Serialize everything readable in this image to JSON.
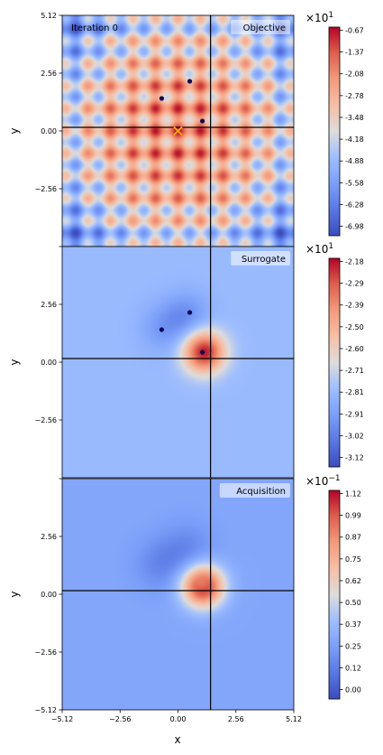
{
  "chart_data": [
    {
      "type": "heatmap",
      "title": "Objective",
      "annotation": "Iteration 0",
      "xlabel": "",
      "ylabel": "y",
      "xlim": [
        -5.12,
        5.12
      ],
      "ylim": [
        -5.12,
        5.12
      ],
      "yticks": [
        "5.12",
        "2.56",
        "0.00",
        "−2.56"
      ],
      "xticks": [],
      "colormap": "coolwarm",
      "colorbar": {
        "scale": "×10",
        "exponent": "1",
        "ticks": [
          "-0.67",
          "-1.37",
          "-2.08",
          "-2.78",
          "-3.48",
          "-4.18",
          "-4.88",
          "-5.58",
          "-6.28",
          "-6.98"
        ]
      },
      "crosshair": {
        "x": 1.44,
        "y": 0.16
      },
      "points": [
        {
          "x": -0.72,
          "y": 1.44
        },
        {
          "x": 0.52,
          "y": 2.2
        },
        {
          "x": 1.08,
          "y": 0.44
        }
      ],
      "marker": {
        "x": 0.0,
        "y": 0.0,
        "symbol": "x",
        "color": "#ffb000"
      }
    },
    {
      "type": "heatmap",
      "title": "Surrogate",
      "xlabel": "",
      "ylabel": "y",
      "xlim": [
        -5.12,
        5.12
      ],
      "ylim": [
        -5.12,
        5.12
      ],
      "yticks": [
        "2.56",
        "0.00",
        "−2.56"
      ],
      "xticks": [],
      "colormap": "coolwarm",
      "colorbar": {
        "scale": "×10",
        "exponent": "1",
        "ticks": [
          "-2.18",
          "-2.29",
          "-2.39",
          "-2.50",
          "-2.60",
          "-2.71",
          "-2.81",
          "-2.91",
          "-3.02",
          "-3.12"
        ]
      },
      "crosshair": {
        "x": 1.44,
        "y": 0.16
      },
      "points": [
        {
          "x": -0.72,
          "y": 1.44
        },
        {
          "x": 0.52,
          "y": 2.2
        },
        {
          "x": 1.08,
          "y": 0.44
        }
      ]
    },
    {
      "type": "heatmap",
      "title": "Acquisition",
      "xlabel": "x",
      "ylabel": "y",
      "xlim": [
        -5.12,
        5.12
      ],
      "ylim": [
        -5.12,
        5.12
      ],
      "yticks": [
        "2.56",
        "0.00",
        "−2.56",
        "−5.12"
      ],
      "xticks": [
        "−5.12",
        "−2.56",
        "0.00",
        "2.56",
        "5.12"
      ],
      "colormap": "coolwarm",
      "colorbar": {
        "scale": "×10",
        "exponent": "−1",
        "ticks": [
          "1.12",
          "0.99",
          "0.87",
          "0.75",
          "0.62",
          "0.50",
          "0.37",
          "0.25",
          "0.12",
          "0.00"
        ]
      },
      "crosshair": {
        "x": 1.44,
        "y": 0.16
      },
      "points": []
    }
  ]
}
